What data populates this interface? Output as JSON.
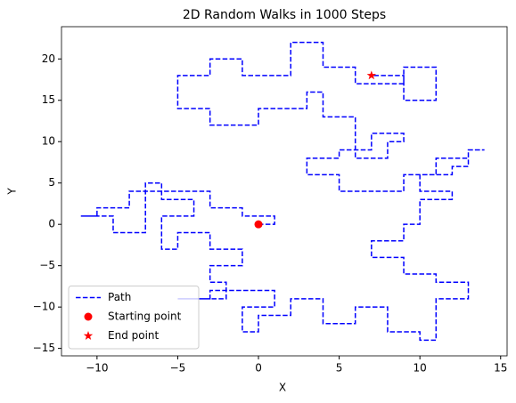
{
  "chart_data": {
    "type": "line",
    "title": "2D Random Walks in 1000 Steps",
    "xlabel": "X",
    "ylabel": "Y",
    "xlim": [
      -12.2,
      15.4
    ],
    "ylim": [
      -15.9,
      23.9
    ],
    "xticks": [
      {
        "value": -10,
        "label": "−10"
      },
      {
        "value": -5,
        "label": "−5"
      },
      0,
      5,
      10,
      15
    ],
    "yticks": [
      {
        "value": -15,
        "label": "−15"
      },
      {
        "value": -10,
        "label": "−10"
      },
      {
        "value": -5,
        "label": "−5"
      },
      0,
      5,
      10,
      15,
      20
    ],
    "legend": "lower left",
    "series": [
      {
        "name": "Path",
        "color": "#0000ff",
        "linestyle": "dashed",
        "x": [
          0,
          1,
          1,
          -1,
          -1,
          -3,
          -3,
          -8,
          -8,
          -10,
          -10,
          -11,
          -9,
          -9,
          -7,
          -7,
          -6,
          -6,
          -4,
          -4,
          -6,
          -6,
          -5,
          -5,
          -3,
          -3,
          -1,
          -1,
          -3,
          -3,
          -2,
          -2,
          -5,
          -3,
          -3,
          1,
          1,
          -1,
          -1,
          0,
          0,
          2,
          2,
          4,
          4,
          6,
          6,
          8,
          8,
          10,
          10,
          11,
          11,
          13,
          13,
          11,
          11,
          9,
          9,
          7,
          7,
          9,
          9,
          10,
          10,
          12,
          12,
          10,
          10,
          12,
          12,
          13,
          13,
          14,
          13,
          13,
          11,
          11,
          9,
          9,
          5,
          5,
          3,
          3,
          5,
          5,
          7,
          7,
          9,
          9,
          8,
          8,
          6,
          6,
          4,
          4,
          3,
          3,
          0,
          0,
          -3,
          -3,
          -5,
          -5,
          -3,
          -3,
          -1,
          -1,
          2,
          2,
          4,
          4,
          6,
          6,
          9,
          9,
          11,
          11,
          9,
          9,
          7
        ],
        "y": [
          0,
          0,
          1,
          1,
          2,
          2,
          4,
          4,
          2,
          2,
          1,
          1,
          1,
          -1,
          -1,
          5,
          5,
          3,
          3,
          1,
          1,
          -3,
          -3,
          -1,
          -1,
          -3,
          -3,
          -5,
          -5,
          -7,
          -7,
          -9,
          -9,
          -9,
          -8,
          -8,
          -10,
          -10,
          -13,
          -13,
          -11,
          -11,
          -9,
          -9,
          -12,
          -12,
          -10,
          -10,
          -13,
          -13,
          -14,
          -14,
          -9,
          -9,
          -7,
          -7,
          -6,
          -6,
          -4,
          -4,
          -2,
          -2,
          0,
          0,
          3,
          3,
          4,
          4,
          6,
          6,
          7,
          7,
          9,
          9,
          9,
          8,
          8,
          6,
          6,
          4,
          4,
          6,
          6,
          8,
          8,
          9,
          9,
          11,
          11,
          10,
          10,
          8,
          8,
          13,
          13,
          16,
          16,
          14,
          14,
          12,
          12,
          14,
          14,
          18,
          18,
          20,
          20,
          18,
          18,
          22,
          22,
          19,
          19,
          17,
          17,
          19,
          19,
          15,
          15,
          18,
          18
        ]
      }
    ],
    "points": [
      {
        "name": "Starting point",
        "color": "#ff0000",
        "marker": "circle",
        "x": 0,
        "y": 0
      },
      {
        "name": "End point",
        "color": "#ff0000",
        "marker": "star",
        "x": 7,
        "y": 18
      }
    ]
  }
}
